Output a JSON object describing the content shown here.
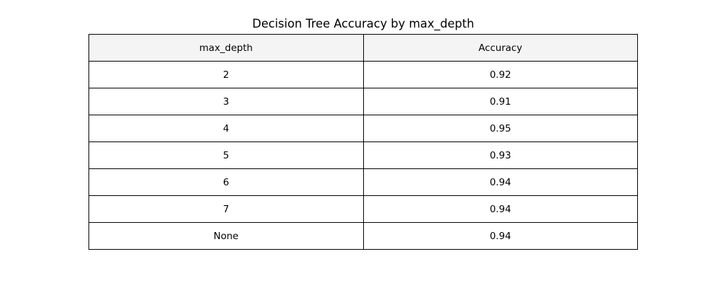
{
  "chart_data": {
    "type": "table",
    "title": "Decision Tree Accuracy by max_depth",
    "columns": [
      "max_depth",
      "Accuracy"
    ],
    "rows": [
      [
        "2",
        "0.92"
      ],
      [
        "3",
        "0.91"
      ],
      [
        "4",
        "0.95"
      ],
      [
        "5",
        "0.93"
      ],
      [
        "6",
        "0.94"
      ],
      [
        "7",
        "0.94"
      ],
      [
        "None",
        "0.94"
      ]
    ],
    "colors": {
      "header_background": "#f4f4f4",
      "cell_background": "#ffffff",
      "border": "#000000"
    }
  }
}
